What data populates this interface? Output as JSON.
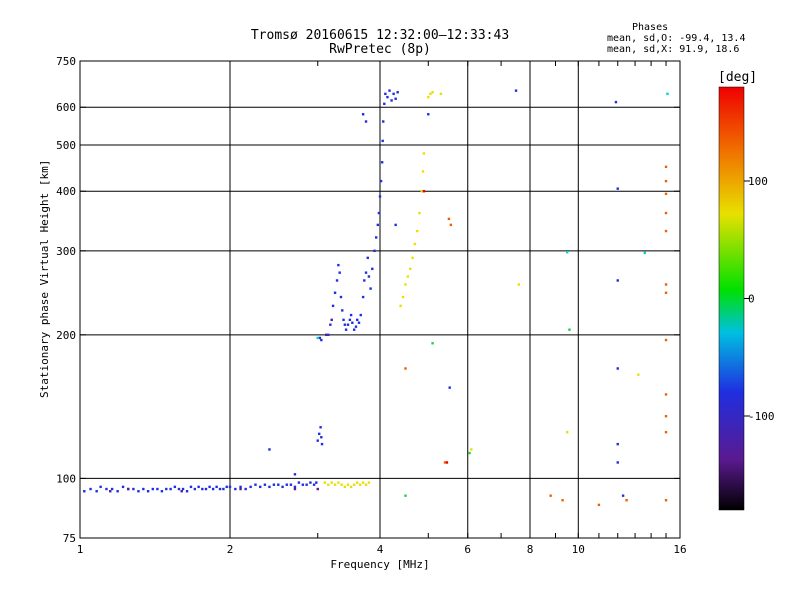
{
  "header": {
    "title": "Tromsø 20160615 12:32:00–12:33:43",
    "subtitle": "RwPretec (8p)",
    "phase_title": "Phases",
    "phase_line_o": "mean, sd,O: -99.4, 13.4",
    "phase_line_x": "mean, sd,X:  91.9, 18.6"
  },
  "colorbar": {
    "label": "[deg]",
    "ticks": [
      "100",
      "0",
      "-100"
    ],
    "tick_values": [
      100,
      0,
      -100
    ],
    "range": [
      -180,
      180
    ]
  },
  "chart_data": {
    "type": "scatter",
    "xlabel": "Frequency [MHz]",
    "ylabel": "Stationary phase Virtual Height [km]",
    "xscale": "log",
    "yscale": "log",
    "xlim": [
      1,
      16
    ],
    "ylim": [
      75,
      750
    ],
    "xticks": [
      1,
      2,
      4,
      6,
      8,
      10,
      16
    ],
    "xtick_labels": [
      "1",
      "2",
      "4",
      "6",
      "8",
      "10",
      "16"
    ],
    "yticks": [
      75,
      100,
      200,
      300,
      400,
      500,
      600,
      750
    ],
    "ytick_labels": [
      "75",
      "100",
      "200",
      "300",
      "400",
      "500",
      "600",
      "750"
    ],
    "grid_x": [
      2,
      4,
      6,
      8,
      10
    ],
    "grid_y": [
      100,
      200,
      300,
      400,
      500,
      600
    ],
    "colors": {
      "blue": "#1f2fe0",
      "yellow": "#e8e000",
      "orange": "#f06000",
      "purple": "#5a1a90",
      "cyan": "#00d0d0",
      "green": "#20d040",
      "red": "#e00000"
    },
    "series": [
      {
        "color": "blue",
        "points": [
          [
            1.02,
            94
          ],
          [
            1.05,
            95
          ],
          [
            1.08,
            94
          ],
          [
            1.1,
            96
          ],
          [
            1.13,
            95
          ],
          [
            1.16,
            95
          ],
          [
            1.19,
            94
          ],
          [
            1.22,
            96
          ],
          [
            1.25,
            95
          ],
          [
            1.28,
            95
          ],
          [
            1.31,
            94
          ],
          [
            1.34,
            95
          ],
          [
            1.37,
            94
          ],
          [
            1.4,
            95
          ],
          [
            1.43,
            95
          ],
          [
            1.46,
            94
          ],
          [
            1.49,
            95
          ],
          [
            1.52,
            95
          ],
          [
            1.55,
            96
          ],
          [
            1.58,
            95
          ],
          [
            1.61,
            95
          ],
          [
            1.64,
            94
          ],
          [
            1.67,
            96
          ],
          [
            1.7,
            95
          ],
          [
            1.73,
            96
          ],
          [
            1.76,
            95
          ],
          [
            1.79,
            95
          ],
          [
            1.82,
            96
          ],
          [
            1.85,
            95
          ],
          [
            1.88,
            96
          ],
          [
            1.91,
            95
          ],
          [
            1.94,
            95
          ],
          [
            1.97,
            96
          ],
          [
            2.0,
            96
          ],
          [
            2.05,
            95
          ],
          [
            2.1,
            96
          ],
          [
            2.15,
            95
          ],
          [
            2.2,
            96
          ],
          [
            2.25,
            97
          ],
          [
            2.3,
            96
          ],
          [
            2.35,
            97
          ],
          [
            2.4,
            96
          ],
          [
            2.45,
            97
          ],
          [
            2.5,
            97
          ],
          [
            2.55,
            96
          ],
          [
            2.6,
            97
          ],
          [
            2.65,
            97
          ],
          [
            2.7,
            96
          ],
          [
            2.75,
            98
          ],
          [
            2.8,
            97
          ],
          [
            2.85,
            97
          ],
          [
            2.9,
            98
          ],
          [
            2.95,
            97
          ],
          [
            2.98,
            98
          ],
          [
            2.4,
            115
          ],
          [
            2.7,
            102
          ],
          [
            3.0,
            120
          ],
          [
            3.02,
            124
          ],
          [
            3.04,
            128
          ],
          [
            3.05,
            122
          ],
          [
            3.06,
            118
          ],
          [
            3.03,
            197
          ],
          [
            3.05,
            195
          ],
          [
            3.15,
            200
          ],
          [
            3.18,
            210
          ],
          [
            3.22,
            230
          ],
          [
            3.25,
            245
          ],
          [
            3.28,
            260
          ],
          [
            3.3,
            280
          ],
          [
            3.32,
            270
          ],
          [
            3.34,
            240
          ],
          [
            3.36,
            225
          ],
          [
            3.38,
            215
          ],
          [
            3.4,
            210
          ],
          [
            3.42,
            205
          ],
          [
            3.45,
            210
          ],
          [
            3.48,
            215
          ],
          [
            3.5,
            220
          ],
          [
            3.52,
            212
          ],
          [
            3.55,
            205
          ],
          [
            3.58,
            208
          ],
          [
            3.6,
            215
          ],
          [
            3.63,
            212
          ],
          [
            3.66,
            220
          ],
          [
            3.7,
            240
          ],
          [
            3.72,
            260
          ],
          [
            3.75,
            270
          ],
          [
            3.78,
            290
          ],
          [
            3.8,
            265
          ],
          [
            3.83,
            250
          ],
          [
            3.86,
            275
          ],
          [
            3.9,
            300
          ],
          [
            3.93,
            320
          ],
          [
            3.96,
            340
          ],
          [
            3.98,
            360
          ],
          [
            4.0,
            390
          ],
          [
            4.02,
            420
          ],
          [
            4.04,
            460
          ],
          [
            4.05,
            510
          ],
          [
            4.06,
            560
          ],
          [
            4.08,
            610
          ],
          [
            4.1,
            640
          ],
          [
            4.14,
            630
          ],
          [
            4.18,
            650
          ],
          [
            4.22,
            620
          ],
          [
            4.26,
            640
          ],
          [
            4.3,
            625
          ],
          [
            4.34,
            645
          ],
          [
            3.7,
            580
          ],
          [
            3.75,
            560
          ],
          [
            4.3,
            340
          ],
          [
            5.0,
            580
          ],
          [
            5.52,
            155
          ],
          [
            7.5,
            650
          ],
          [
            11.9,
            615
          ],
          [
            12.0,
            405
          ],
          [
            12.0,
            260
          ],
          [
            12.0,
            170
          ],
          [
            12.0,
            118
          ],
          [
            12.0,
            108
          ],
          [
            12.3,
            92
          ]
        ]
      },
      {
        "color": "yellow",
        "points": [
          [
            3.1,
            98
          ],
          [
            3.15,
            97
          ],
          [
            3.2,
            98
          ],
          [
            3.25,
            97
          ],
          [
            3.3,
            98
          ],
          [
            3.35,
            97
          ],
          [
            3.4,
            96
          ],
          [
            3.45,
            97
          ],
          [
            3.5,
            96
          ],
          [
            3.55,
            97
          ],
          [
            3.6,
            98
          ],
          [
            3.65,
            97
          ],
          [
            3.7,
            98
          ],
          [
            3.75,
            97
          ],
          [
            3.8,
            98
          ],
          [
            4.4,
            230
          ],
          [
            4.45,
            240
          ],
          [
            4.5,
            255
          ],
          [
            4.55,
            265
          ],
          [
            4.6,
            275
          ],
          [
            4.65,
            290
          ],
          [
            4.7,
            310
          ],
          [
            4.75,
            330
          ],
          [
            4.8,
            360
          ],
          [
            4.85,
            400
          ],
          [
            4.88,
            440
          ],
          [
            4.9,
            480
          ],
          [
            5.0,
            630
          ],
          [
            5.05,
            640
          ],
          [
            5.1,
            645
          ],
          [
            5.3,
            640
          ],
          [
            6.1,
            115
          ],
          [
            7.6,
            255
          ],
          [
            9.5,
            125
          ],
          [
            13.2,
            165
          ]
        ]
      },
      {
        "color": "orange",
        "points": [
          [
            4.5,
            170
          ],
          [
            5.4,
            108
          ],
          [
            5.5,
            350
          ],
          [
            5.55,
            340
          ],
          [
            8.8,
            92
          ],
          [
            9.3,
            90
          ],
          [
            11.0,
            88
          ],
          [
            12.5,
            90
          ],
          [
            15.0,
            450
          ],
          [
            15.0,
            420
          ],
          [
            15.0,
            395
          ],
          [
            15.0,
            360
          ],
          [
            15.0,
            330
          ],
          [
            15.0,
            255
          ],
          [
            15.0,
            245
          ],
          [
            15.0,
            195
          ],
          [
            15.0,
            150
          ],
          [
            15.0,
            135
          ],
          [
            15.0,
            125
          ],
          [
            15.0,
            90
          ]
        ]
      },
      {
        "color": "purple",
        "points": [
          [
            3.0,
            95
          ],
          [
            3.12,
            200
          ],
          [
            3.2,
            215
          ],
          [
            1.15,
            94
          ],
          [
            1.25,
            95
          ],
          [
            1.6,
            94
          ],
          [
            2.1,
            95
          ],
          [
            2.7,
            95
          ]
        ]
      },
      {
        "color": "cyan",
        "points": [
          [
            3.0,
            197
          ],
          [
            9.5,
            298
          ],
          [
            13.6,
            297
          ],
          [
            15.1,
            640
          ]
        ]
      },
      {
        "color": "green",
        "points": [
          [
            4.5,
            92
          ],
          [
            5.1,
            192
          ],
          [
            9.6,
            205
          ],
          [
            6.05,
            113
          ]
        ]
      },
      {
        "color": "red",
        "points": [
          [
            4.9,
            400
          ],
          [
            5.45,
            108
          ]
        ]
      }
    ]
  }
}
